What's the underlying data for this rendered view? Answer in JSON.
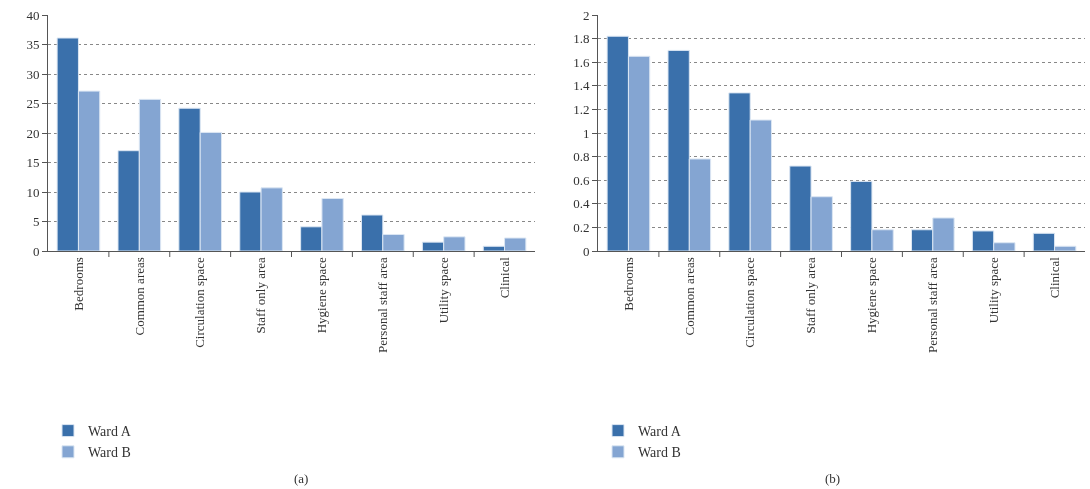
{
  "chart_data": [
    {
      "type": "bar",
      "categories": [
        "Bedrooms",
        "Common areas",
        "Circulation space",
        "Staff only area",
        "Hygiene space",
        "Personal staff area",
        "Utility space",
        "Clinical"
      ],
      "series": [
        {
          "name": "Ward A",
          "color": "#3a70ab",
          "values": [
            36.1,
            17,
            24.2,
            10,
            4.1,
            6.1,
            1.5,
            0.8
          ]
        },
        {
          "name": "Ward B",
          "color": "#84a5d2",
          "values": [
            27.1,
            25.7,
            20.1,
            10.7,
            8.9,
            2.8,
            2.4,
            2.2
          ]
        }
      ],
      "ylim": [
        0,
        40
      ],
      "yticks": [
        0,
        5,
        10,
        15,
        20,
        25,
        30,
        35,
        40
      ],
      "grid": "y",
      "legend": "bottom left",
      "annotations": [
        "(a)"
      ]
    },
    {
      "type": "bar",
      "categories": [
        "Bedrooms",
        "Common areas",
        "Circulation space",
        "Staff only area",
        "Hygiene space",
        "Personal staff area",
        "Utility space",
        "Clinical"
      ],
      "series": [
        {
          "name": "Ward A",
          "color": "#3a70ab",
          "values": [
            1.82,
            1.7,
            1.34,
            0.72,
            0.59,
            0.18,
            0.17,
            0.15
          ]
        },
        {
          "name": "Ward B",
          "color": "#84a5d2",
          "values": [
            1.65,
            0.78,
            1.11,
            0.46,
            0.18,
            0.28,
            0.07,
            0.04
          ]
        }
      ],
      "ylim": [
        0,
        2
      ],
      "yticks": [
        0,
        {
          "value": 0.2,
          "label": "0.2"
        },
        {
          "value": 0.4,
          "label": "0.4"
        },
        {
          "value": 0.6,
          "label": "0.6"
        },
        {
          "value": 0.8,
          "label": "0.8"
        },
        1,
        {
          "value": 1.2,
          "label": "1.2"
        },
        {
          "value": 1.4,
          "label": "1.4"
        },
        {
          "value": 1.6,
          "label": "1.6"
        },
        {
          "value": 1.8,
          "label": "1.8"
        },
        2
      ],
      "grid": "y",
      "legend": "bottom left",
      "annotations": [
        "(b)"
      ]
    }
  ]
}
